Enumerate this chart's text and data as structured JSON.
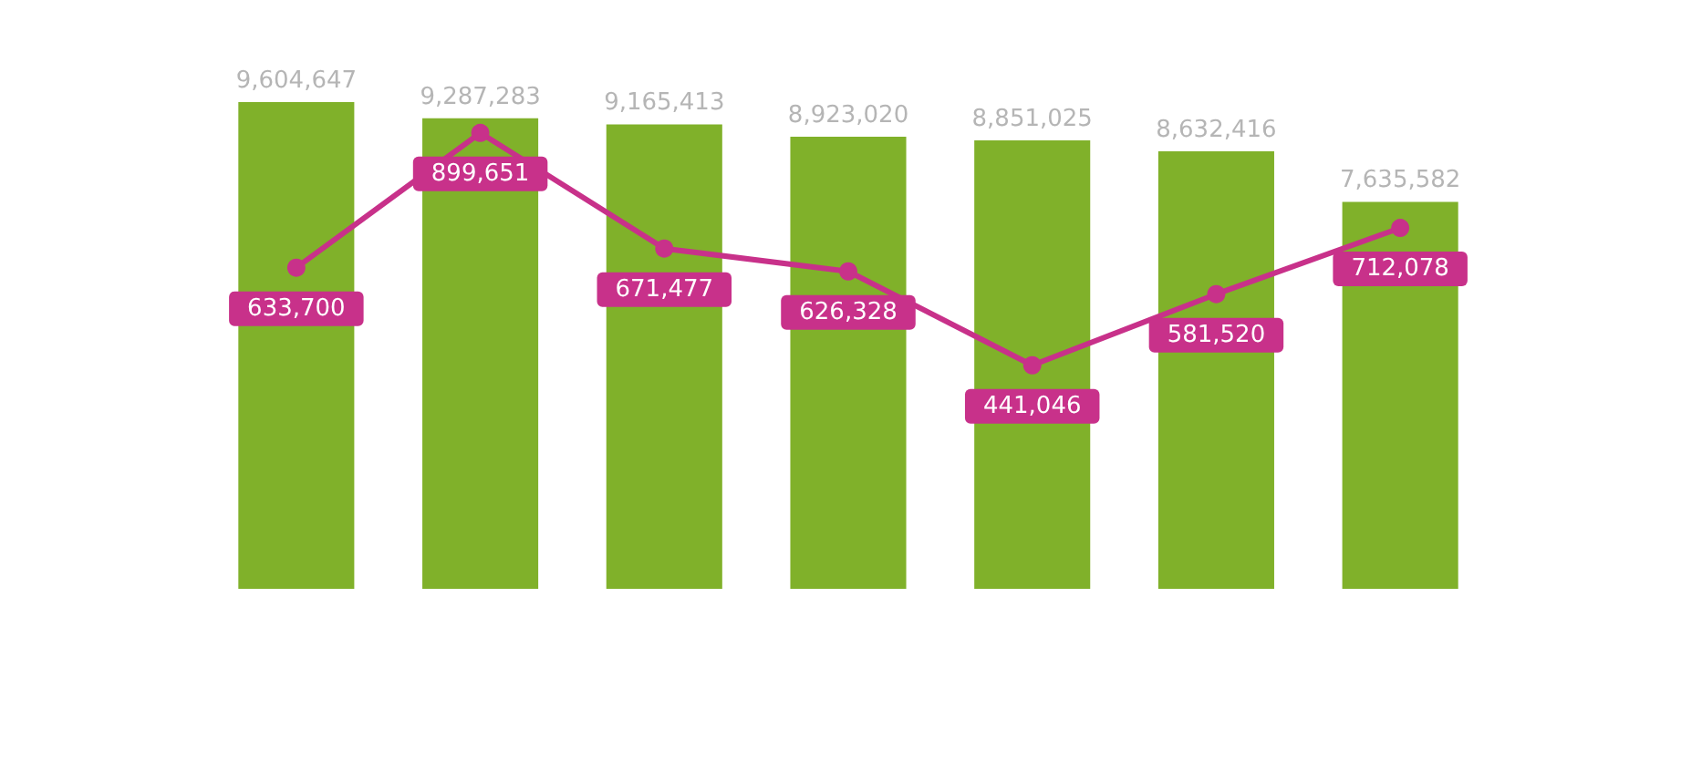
{
  "chart_data": [
    {
      "type": "bar",
      "categories": [
        null,
        null,
        null,
        null,
        null,
        null,
        null
      ],
      "series": [
        {
          "color": "#80b12a",
          "values": [
            9604647,
            9287283,
            9165413,
            8923020,
            8851025,
            8632416,
            7635582
          ],
          "value_labels": [
            "9,604,647",
            "9,287,283",
            "9,165,413",
            "8,923,020",
            "8,851,025",
            "8,632,416",
            "7,635,582"
          ]
        }
      ],
      "tick_labels": false
    },
    {
      "type": "line",
      "categories": [
        null,
        null,
        null,
        null,
        null,
        null,
        null
      ],
      "series": [
        {
          "color": "#c8318a",
          "values": [
            633700,
            899651,
            671477,
            626328,
            441046,
            581520,
            712078
          ],
          "value_labels": [
            "633,700",
            "899,651",
            "671,477",
            "626,328",
            "441,046",
            "581,520",
            "712,078"
          ]
        }
      ],
      "tick_labels": false,
      "marker": "circle"
    }
  ]
}
